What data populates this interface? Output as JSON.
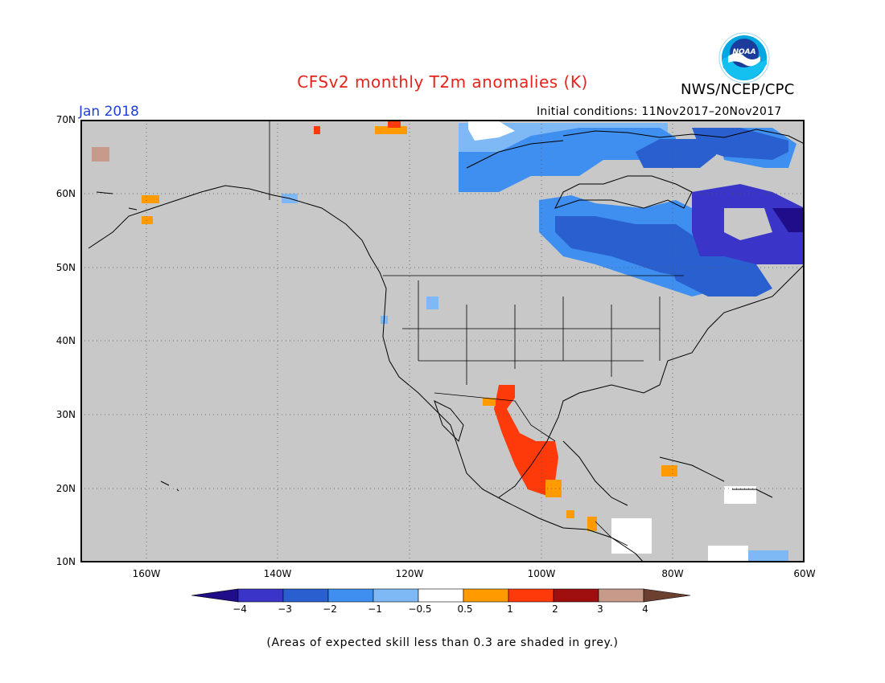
{
  "header": {
    "title": "CFSv2 monthly T2m anomalies (K)",
    "valid_month": "Jan 2018",
    "initial_conditions": "Initial conditions: 11Nov2017–20Nov2017",
    "agency": "NWS/NCEP/CPC",
    "logo_text": "NOAA"
  },
  "map": {
    "projection": "lat-lon",
    "lon_range": [
      "170W",
      "60W"
    ],
    "lat_range": [
      "10N",
      "70N"
    ],
    "grid": "dotted",
    "background_color": "#c8c8c8",
    "lat_ticks": [
      "70N",
      "60N",
      "50N",
      "40N",
      "30N",
      "20N",
      "10N"
    ],
    "lon_ticks": [
      "160W",
      "140W",
      "120W",
      "100W",
      "80W",
      "60W"
    ]
  },
  "colorbar": {
    "labels": [
      "−4",
      "−3",
      "−2",
      "−1",
      "−0.5",
      "0.5",
      "1",
      "2",
      "3",
      "4"
    ],
    "colors": [
      "#1f0d8a",
      "#3a35c8",
      "#2a5fd0",
      "#3f8ff0",
      "#7fb9f5",
      "#ffffff",
      "#ff9a00",
      "#ff3a0a",
      "#a00f0f",
      "#c79a8a",
      "#6b4030"
    ]
  },
  "footnote": "(Areas of expected skill less than 0.3 are shaded in grey.)",
  "legend_colors": {
    "deep_blue": "#3a35c8",
    "mid_blue": "#2a5fd0",
    "blue": "#3f8ff0",
    "light_blue": "#7fb9f5",
    "orange": "#ff9a00",
    "red_orange": "#ff3a0a",
    "brown": "#c79a8a"
  }
}
